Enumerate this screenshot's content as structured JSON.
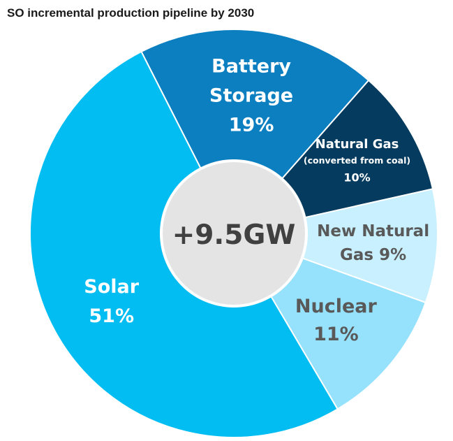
{
  "chart_data": {
    "type": "pie",
    "title": "SO incremental production pipeline by 2030",
    "center_label": "+9.5GW",
    "slices": [
      {
        "name": "Battery Storage",
        "label_lines": [
          "Battery",
          "Storage"
        ],
        "pct_text": "19%",
        "value": 19,
        "color": "#0c7fc1",
        "text_color": "#ffffff"
      },
      {
        "name": "Natural Gas (converted from coal)",
        "label_lines": [
          "Natural Gas",
          "(converted from coal)"
        ],
        "pct_text": "10%",
        "value": 10,
        "color": "#053b5e",
        "text_color": "#ffffff"
      },
      {
        "name": "New Natural Gas",
        "label_lines": [
          "New Natural",
          "Gas 9%"
        ],
        "pct_text": "",
        "value": 9,
        "color": "#c8f0fe",
        "text_color": "#595959"
      },
      {
        "name": "Nuclear",
        "label_lines": [
          "Nuclear"
        ],
        "pct_text": "11%",
        "value": 11,
        "color": "#96e2fc",
        "text_color": "#595959"
      },
      {
        "name": "Solar",
        "label_lines": [
          "Solar"
        ],
        "pct_text": "51%",
        "value": 51,
        "color": "#02bdf1",
        "text_color": "#ffffff"
      }
    ]
  }
}
